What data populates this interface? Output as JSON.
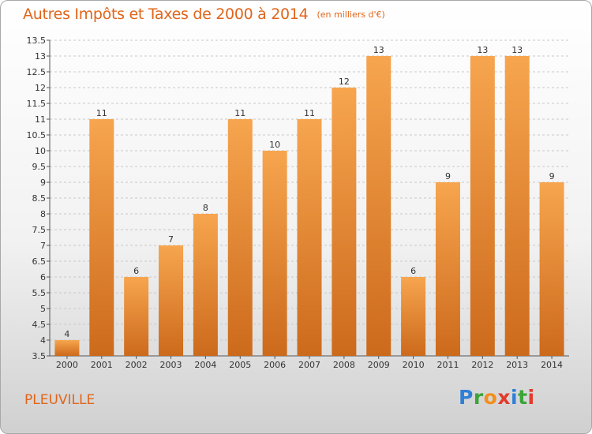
{
  "title": "Autres Impôts et Taxes de 2000 à 2014",
  "subtitle": "(en milliers d'€)",
  "commune": "PLEUVILLE",
  "logo": {
    "text": "Proxiti",
    "colors": [
      "#2f7fd6",
      "#3aa538",
      "#f28f1d",
      "#e23b2d",
      "#2f7fd6",
      "#3aa538",
      "#e23b2d"
    ]
  },
  "colors": {
    "bar_light": "#f7a54f",
    "bar_dark": "#cc6a1b",
    "title": "#e0651b",
    "grid": "#c8c8c8"
  },
  "chart_data": {
    "type": "bar",
    "categories": [
      "2000",
      "2001",
      "2002",
      "2003",
      "2004",
      "2005",
      "2006",
      "2007",
      "2008",
      "2009",
      "2010",
      "2011",
      "2012",
      "2013",
      "2014"
    ],
    "values": [
      4,
      11,
      6,
      7,
      8,
      11,
      10,
      11,
      12,
      13,
      6,
      9,
      13,
      13,
      9
    ],
    "data_labels": [
      "4",
      "11",
      "6",
      "7",
      "8",
      "11",
      "10",
      "11",
      "12",
      "13",
      "6",
      "9",
      "13",
      "13",
      "9"
    ],
    "yticks": [
      "3.5",
      "4",
      "4.5",
      "5",
      "5.5",
      "6",
      "6.5",
      "7",
      "7.5",
      "8",
      "8.5",
      "9",
      "9.5",
      "10",
      "10.5",
      "11",
      "11.5",
      "12",
      "12.5",
      "13",
      "13.5"
    ],
    "ylim": [
      3.5,
      13.5
    ],
    "grid": true,
    "legend": "none"
  }
}
